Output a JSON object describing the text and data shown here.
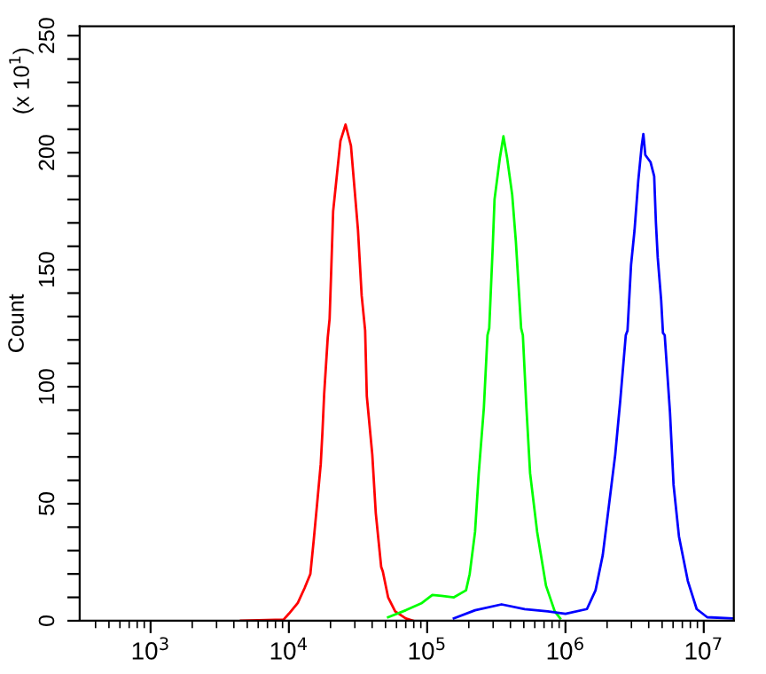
{
  "chart_data": {
    "type": "line",
    "ylabel": "Count",
    "annotations": [
      "(x 10$^{1}$)"
    ],
    "log": "x",
    "xlim": [
      307,
      16500000
    ],
    "ylim": [
      0,
      254
    ],
    "xticks": [
      {
        "value": 1000,
        "label": "10$^{3}$"
      },
      {
        "value": 10000,
        "label": "10$^{4}$"
      },
      {
        "value": 100000,
        "label": "10$^{5}$"
      },
      {
        "value": 1000000,
        "label": "10$^{6}$"
      },
      {
        "value": 10000000,
        "label": "10$^{7}$"
      }
    ],
    "yticks": [
      0,
      {
        "value": 10,
        "label": null
      },
      {
        "value": 20,
        "label": null
      },
      {
        "value": 30,
        "label": null
      },
      {
        "value": 40,
        "label": null
      },
      50,
      {
        "value": 60,
        "label": null
      },
      {
        "value": 70,
        "label": null
      },
      {
        "value": 80,
        "label": null
      },
      {
        "value": 90,
        "label": null
      },
      100,
      {
        "value": 110,
        "label": null
      },
      {
        "value": 120,
        "label": null
      },
      {
        "value": 130,
        "label": null
      },
      {
        "value": 140,
        "label": null
      },
      150,
      {
        "value": 160,
        "label": null
      },
      {
        "value": 170,
        "label": null
      },
      {
        "value": 180,
        "label": null
      },
      {
        "value": 190,
        "label": null
      },
      200,
      {
        "value": 210,
        "label": null
      },
      {
        "value": 220,
        "label": null
      },
      {
        "value": 230,
        "label": null
      },
      {
        "value": 240,
        "label": null
      },
      250
    ],
    "grid": false,
    "marker": "none",
    "line_style": "solid",
    "series": [
      {
        "color": "#ff0000",
        "x": [
          4510,
          9160,
          10000,
          11600,
          13000,
          14300,
          15100,
          16000,
          17000,
          17500,
          18000,
          19100,
          19700,
          20300,
          20900,
          22200,
          23600,
          25700,
          28100,
          29800,
          31600,
          33600,
          35600,
          36600,
          40100,
          42500,
          46500,
          47800,
          52200,
          58700,
          70100,
          78900
        ],
        "values": [
          0,
          0.5,
          3,
          7.6,
          14,
          20,
          34,
          50,
          67,
          81,
          97,
          121,
          129,
          152,
          175,
          190,
          205,
          212,
          203,
          185,
          167,
          139,
          124,
          96,
          71,
          46,
          23,
          21,
          10,
          4,
          1,
          0
        ]
      },
      {
        "color": "#00ff00",
        "x": [
          52200,
          70100,
          91600,
          109000,
          127000,
          156000,
          191000,
          203000,
          222000,
          236000,
          257000,
          273000,
          281000,
          298000,
          307000,
          336000,
          356000,
          378000,
          412000,
          438000,
          478000,
          492000,
          522000,
          555000,
          624000,
          723000,
          837000,
          916000
        ],
        "values": [
          1.5,
          4.5,
          7.6,
          11,
          10.6,
          10,
          13,
          20,
          38,
          63,
          91,
          122,
          125,
          160,
          180,
          198,
          207,
          198,
          182,
          162,
          125,
          122,
          91,
          63,
          38,
          15,
          4,
          1
        ]
      },
      {
        "color": "#0000ff",
        "x": [
          156000,
          222000,
          345000,
          507000,
          745000,
          1000000,
          1430000,
          1650000,
          1860000,
          2030000,
          2290000,
          2490000,
          2730000,
          2810000,
          2980000,
          3160000,
          3360000,
          3560000,
          3660000,
          3780000,
          4120000,
          4380000,
          4510000,
          4650000,
          4920000,
          5070000,
          5220000,
          5700000,
          6050000,
          6620000,
          7670000,
          8890000,
          10600000,
          16000000
        ],
        "values": [
          1,
          4.5,
          7,
          5,
          4,
          3,
          5,
          13,
          28,
          46,
          71,
          94,
          122,
          124,
          152,
          167,
          188,
          203,
          208,
          199,
          196,
          190,
          170,
          155,
          137,
          123,
          122,
          89,
          58,
          36,
          17,
          5,
          1.5,
          1
        ]
      }
    ]
  }
}
